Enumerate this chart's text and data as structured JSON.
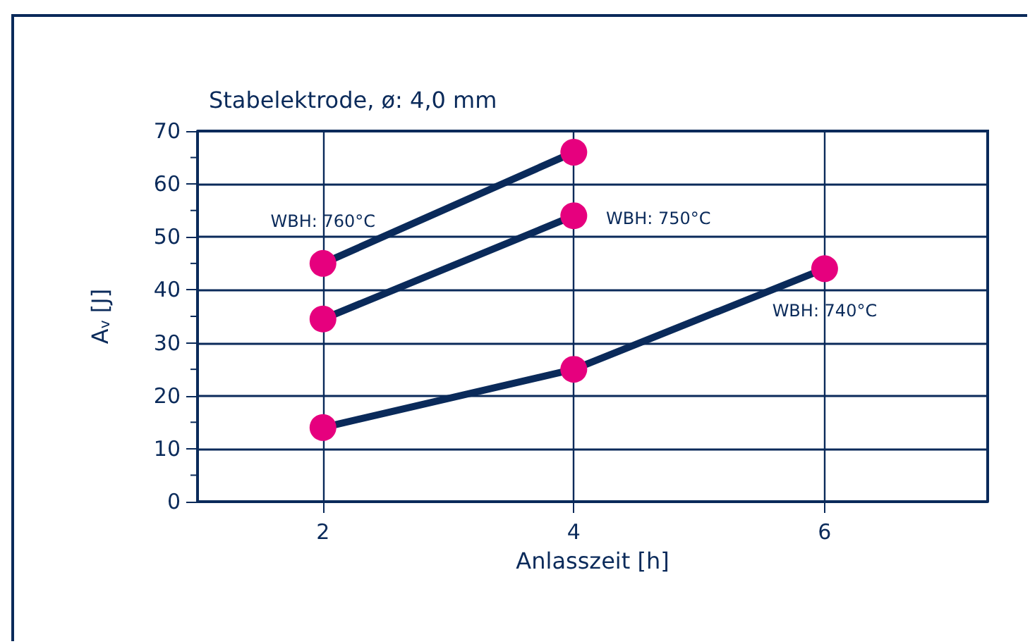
{
  "chart_data": {
    "type": "line",
    "title": "Stabelektrode, ø: 4,0 mm",
    "xlabel": "Anlasszeit [h]",
    "ylabel": "A$_{v}$ [J]",
    "xlim": [
      1,
      7.3
    ],
    "xticks": [
      2,
      4,
      6
    ],
    "ylim": [
      0,
      70
    ],
    "yticks": [
      0,
      10,
      20,
      30,
      40,
      50,
      60,
      70
    ],
    "grid": true,
    "legend": false,
    "marker": "circle",
    "line_style": "solid",
    "series": [
      {
        "name": "WBH: 760°C",
        "color": "#0a2a5a",
        "colors": [
          "#e6007e",
          "#e6007e"
        ],
        "x": [
          2,
          4
        ],
        "values": [
          45,
          66
        ]
      },
      {
        "name": "WBH: 750°C",
        "color": "#0a2a5a",
        "colors": [
          "#e6007e",
          "#e6007e"
        ],
        "x": [
          2,
          4
        ],
        "values": [
          34.5,
          54
        ]
      },
      {
        "name": "WBH: 740°C",
        "color": "#0a2a5a",
        "colors": [
          "#e6007e",
          "#e6007e",
          "#e6007e"
        ],
        "x": [
          2,
          4,
          6
        ],
        "values": [
          14,
          25,
          44
        ]
      }
    ]
  }
}
